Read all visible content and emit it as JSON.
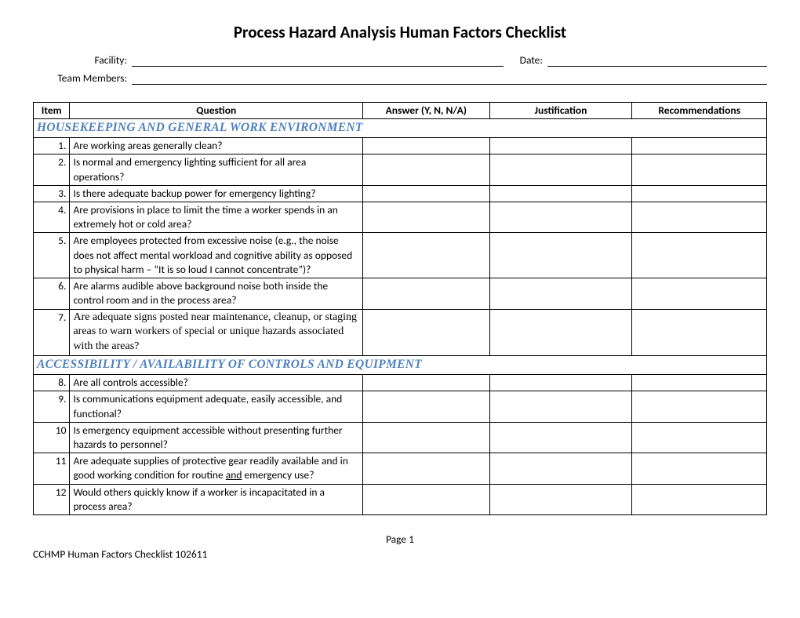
{
  "title": "Process Hazard Analysis Human Factors Checklist",
  "meta": {
    "facility_label": "Facility:",
    "date_label": "Date:",
    "team_label": "Team Members:"
  },
  "headers": {
    "item": "Item",
    "question": "Question",
    "answer": "Answer (Y, N, N/A)",
    "justification": "Justification",
    "recommendations": "Recommendations"
  },
  "section1": "HOUSEKEEPING AND GENERAL WORK ENVIRONMENT",
  "rows1": [
    {
      "n": "1.",
      "q": "Are working areas generally clean?"
    },
    {
      "n": "2.",
      "q": "Is normal and emergency lighting sufficient for all area operations?"
    },
    {
      "n": "3.",
      "q": "Is there adequate backup power for emergency lighting?"
    },
    {
      "n": "4.",
      "q": "Are provisions in place to limit the time a worker spends in an extremely hot or cold area?"
    },
    {
      "n": "5.",
      "q": "Are employees protected from excessive noise (e.g., the noise does not affect mental workload and cognitive ability as opposed to physical harm – “It is so loud I cannot concentrate”)?"
    },
    {
      "n": "6.",
      "q": "Are alarms audible above background noise both inside the control room and in the process area?"
    },
    {
      "n": "7.",
      "q": "Are adequate signs posted near maintenance, cleanup, or staging areas to warn workers of special or unique hazards associated with the areas?",
      "serif": true
    }
  ],
  "section2": "ACCESSIBILITY / AVAILABILITY OF CONTROLS AND EQUIPMENT",
  "rows2": [
    {
      "n": "8.",
      "q": "Are all controls accessible?"
    },
    {
      "n": "9.",
      "q": "Is communications equipment adequate, easily accessible, and functional?"
    },
    {
      "n": "10",
      "q": "Is emergency equipment accessible without presenting further hazards to personnel?"
    },
    {
      "n": "11",
      "q_pre": "Are adequate supplies of protective gear readily available and in good working condition for routine ",
      "q_u": "and",
      "q_post": " emergency use?",
      "special_underline": true
    },
    {
      "n": "12",
      "q": "Would others quickly know if a worker is incapacitated in a process area?"
    }
  ],
  "footer": {
    "page": "Page 1",
    "left": "CCHMP Human Factors Checklist 102611"
  }
}
